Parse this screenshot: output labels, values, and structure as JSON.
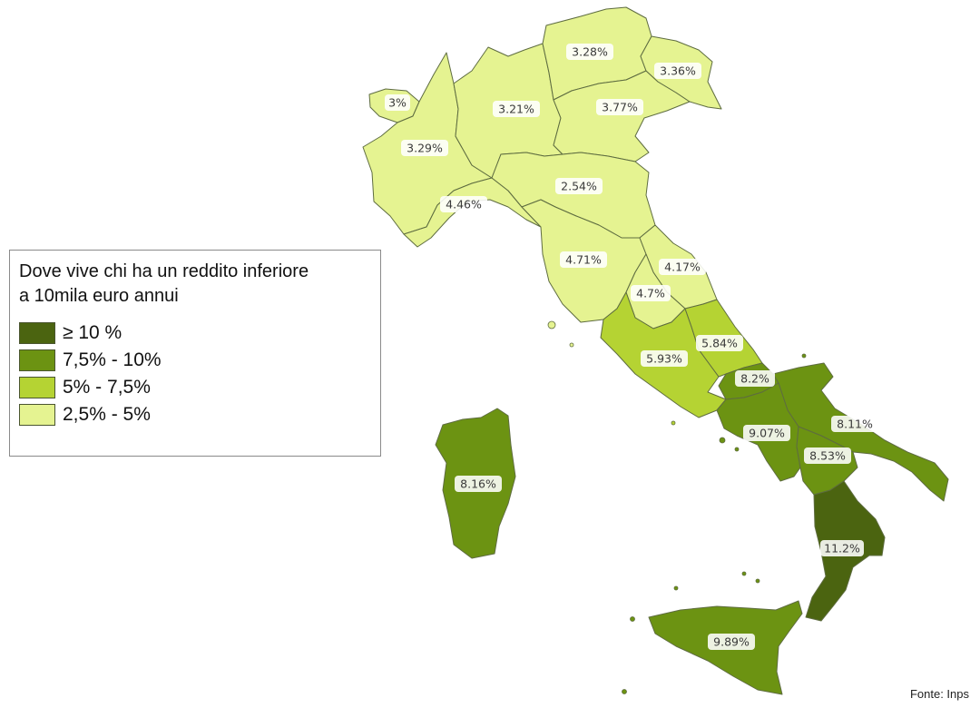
{
  "legend": {
    "title_line1": "Dove vive chi ha un reddito inferiore",
    "title_line2": "a 10mila euro annui",
    "items": [
      {
        "label": "≥ 10 %",
        "color": "#4b6410"
      },
      {
        "label": "7,5% - 10%",
        "color": "#6c9312"
      },
      {
        "label": "5% - 7,5%",
        "color": "#b5d333"
      },
      {
        "label": "2,5% - 5%",
        "color": "#e5f391"
      }
    ]
  },
  "source": "Fonte: Inps",
  "regions": [
    {
      "id": "valle-d-aosta",
      "value": "3%",
      "class": "2,5% - 5%",
      "color": "#e5f391"
    },
    {
      "id": "piemonte",
      "value": "3.29%",
      "class": "2,5% - 5%",
      "color": "#e5f391"
    },
    {
      "id": "liguria",
      "value": "4.46%",
      "class": "2,5% - 5%",
      "color": "#e5f391"
    },
    {
      "id": "lombardia",
      "value": "3.21%",
      "class": "2,5% - 5%",
      "color": "#e5f391"
    },
    {
      "id": "trentino-alto-adige",
      "value": "3.28%",
      "class": "2,5% - 5%",
      "color": "#e5f391"
    },
    {
      "id": "veneto",
      "value": "3.77%",
      "class": "2,5% - 5%",
      "color": "#e5f391"
    },
    {
      "id": "friuli-venezia-giulia",
      "value": "3.36%",
      "class": "2,5% - 5%",
      "color": "#e5f391"
    },
    {
      "id": "emilia-romagna",
      "value": "2.54%",
      "class": "2,5% - 5%",
      "color": "#e5f391"
    },
    {
      "id": "toscana",
      "value": "4.71%",
      "class": "2,5% - 5%",
      "color": "#e5f391"
    },
    {
      "id": "marche",
      "value": "4.17%",
      "class": "2,5% - 5%",
      "color": "#e5f391"
    },
    {
      "id": "umbria",
      "value": "4.7%",
      "class": "2,5% - 5%",
      "color": "#e5f391"
    },
    {
      "id": "lazio",
      "value": "5.93%",
      "class": "5% - 7,5%",
      "color": "#b5d333"
    },
    {
      "id": "abruzzo",
      "value": "5.84%",
      "class": "5% - 7,5%",
      "color": "#b5d333"
    },
    {
      "id": "molise",
      "value": "8.2%",
      "class": "7,5% - 10%",
      "color": "#6c9312"
    },
    {
      "id": "campania",
      "value": "9.07%",
      "class": "7,5% - 10%",
      "color": "#6c9312"
    },
    {
      "id": "puglia",
      "value": "8.11%",
      "class": "7,5% - 10%",
      "color": "#6c9312"
    },
    {
      "id": "basilicata",
      "value": "8.53%",
      "class": "7,5% - 10%",
      "color": "#6c9312"
    },
    {
      "id": "calabria",
      "value": "11.2%",
      "class": "≥ 10 %",
      "color": "#4b6410"
    },
    {
      "id": "sicilia",
      "value": "9.89%",
      "class": "7,5% - 10%",
      "color": "#6c9312"
    },
    {
      "id": "sardegna",
      "value": "8.16%",
      "class": "7,5% - 10%",
      "color": "#6c9312"
    }
  ]
}
